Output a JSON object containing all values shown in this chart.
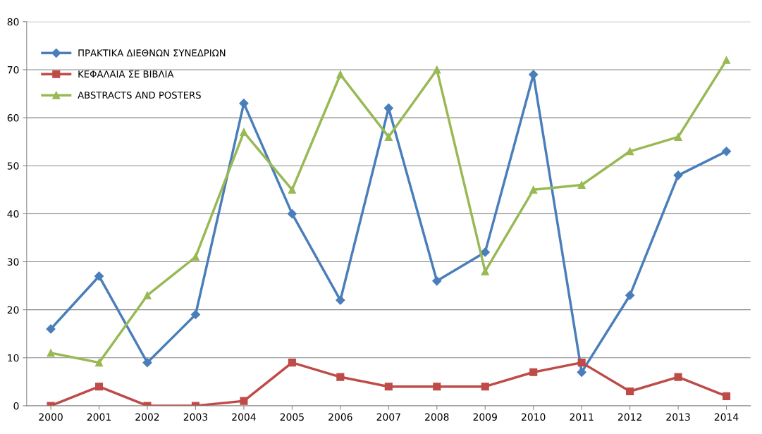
{
  "chart_data": {
    "type": "line",
    "categories": [
      "2000",
      "2001",
      "2002",
      "2003",
      "2004",
      "2005",
      "2006",
      "2007",
      "2008",
      "2009",
      "2010",
      "2011",
      "2012",
      "2013",
      "2014"
    ],
    "series": [
      {
        "name": "ΠΡΑΚΤΙΚΑ ΔΙΕΘΝΩΝ ΣΥΝΕΔΡΙΩΝ",
        "color": "#4a7ebb",
        "marker": "diamond",
        "values": [
          16,
          27,
          9,
          19,
          63,
          40,
          22,
          62,
          26,
          32,
          69,
          7,
          23,
          48,
          53
        ]
      },
      {
        "name": "ΚΕΦΑΛΑΙΑ ΣΕ ΒΙΒΛΙΑ",
        "color": "#be4b48",
        "marker": "square",
        "values": [
          0,
          4,
          0,
          0,
          1,
          9,
          6,
          4,
          4,
          4,
          7,
          9,
          3,
          6,
          2
        ]
      },
      {
        "name": "ABSTRACTS AND POSTERS",
        "color": "#98b954",
        "marker": "triangle",
        "values": [
          11,
          9,
          23,
          31,
          57,
          45,
          69,
          56,
          70,
          28,
          45,
          46,
          53,
          56,
          72
        ]
      }
    ],
    "ylim": [
      0,
      80
    ],
    "yticks": [
      0,
      10,
      20,
      30,
      40,
      50,
      60,
      70,
      80
    ],
    "grid": "y",
    "legend": "top left",
    "line_style": "solid"
  }
}
